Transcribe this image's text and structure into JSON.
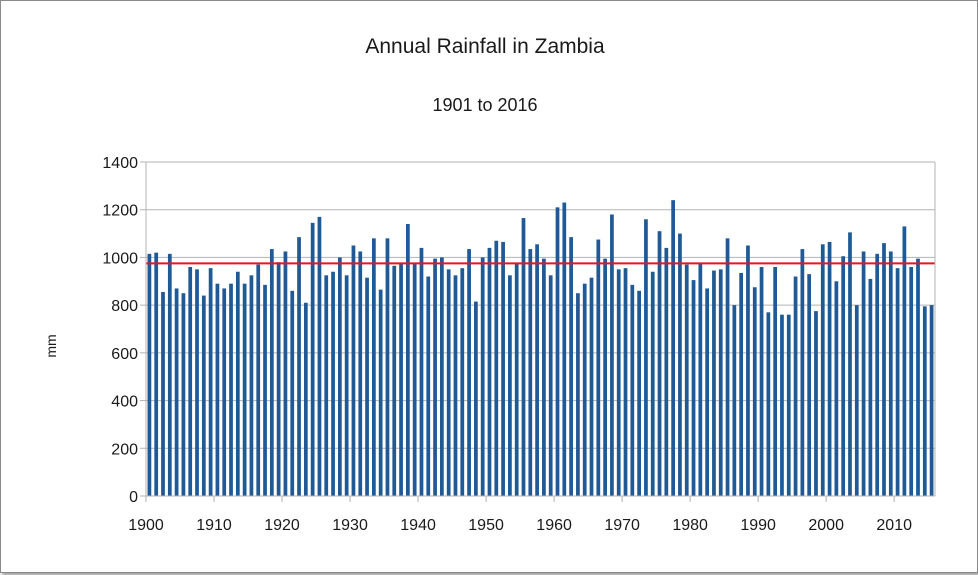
{
  "chart_data": {
    "type": "bar",
    "title": "Annual Rainfall in Zambia",
    "subtitle": "1901 to 2016",
    "xlabel": "",
    "ylabel": "mm",
    "xlim": [
      1900,
      2016
    ],
    "ylim": [
      0,
      1400
    ],
    "x_ticks": [
      1900,
      1910,
      1920,
      1930,
      1940,
      1950,
      1960,
      1970,
      1980,
      1990,
      2000,
      2010
    ],
    "y_ticks": [
      0,
      200,
      400,
      600,
      800,
      1000,
      1200,
      1400
    ],
    "grid": true,
    "legend": "none",
    "reference_line": {
      "value": 975
    },
    "series": [
      {
        "color": "#1f5a96",
        "x": [
          1901,
          1902,
          1903,
          1904,
          1905,
          1906,
          1907,
          1908,
          1909,
          1910,
          1911,
          1912,
          1913,
          1914,
          1915,
          1916,
          1917,
          1918,
          1919,
          1920,
          1921,
          1922,
          1923,
          1924,
          1925,
          1926,
          1927,
          1928,
          1929,
          1930,
          1931,
          1932,
          1933,
          1934,
          1935,
          1936,
          1937,
          1938,
          1939,
          1940,
          1941,
          1942,
          1943,
          1944,
          1945,
          1946,
          1947,
          1948,
          1949,
          1950,
          1951,
          1952,
          1953,
          1954,
          1955,
          1956,
          1957,
          1958,
          1959,
          1960,
          1961,
          1962,
          1963,
          1964,
          1965,
          1966,
          1967,
          1968,
          1969,
          1970,
          1971,
          1972,
          1973,
          1974,
          1975,
          1976,
          1977,
          1978,
          1979,
          1980,
          1981,
          1982,
          1983,
          1984,
          1985,
          1986,
          1987,
          1988,
          1989,
          1990,
          1991,
          1992,
          1993,
          1994,
          1995,
          1996,
          1997,
          1998,
          1999,
          2000,
          2001,
          2002,
          2003,
          2004,
          2005,
          2006,
          2007,
          2008,
          2009,
          2010,
          2011,
          2012,
          2013,
          2014,
          2015,
          2016
        ],
        "values": [
          1015,
          1020,
          855,
          1015,
          870,
          850,
          960,
          950,
          840,
          955,
          890,
          870,
          890,
          940,
          890,
          925,
          970,
          885,
          1035,
          980,
          1025,
          860,
          1085,
          810,
          1145,
          1170,
          925,
          940,
          1000,
          925,
          1050,
          1025,
          915,
          1080,
          865,
          1080,
          965,
          975,
          1140,
          975,
          1040,
          920,
          995,
          1000,
          950,
          925,
          955,
          1035,
          815,
          1000,
          1040,
          1070,
          1065,
          925,
          975,
          1165,
          1035,
          1055,
          995,
          925,
          1210,
          1230,
          1085,
          850,
          890,
          915,
          1075,
          995,
          1180,
          950,
          955,
          885,
          860,
          1160,
          940,
          1110,
          1040,
          1240,
          1100,
          970,
          905,
          975,
          870,
          945,
          950,
          1080,
          800,
          935,
          1050,
          875,
          960,
          770,
          960,
          760,
          760,
          920,
          1035,
          930,
          775,
          1055,
          1065,
          900,
          1005,
          1105,
          800,
          1025,
          910,
          1015,
          1060,
          1025,
          955,
          1130,
          960,
          995,
          795,
          800
        ]
      }
    ]
  }
}
